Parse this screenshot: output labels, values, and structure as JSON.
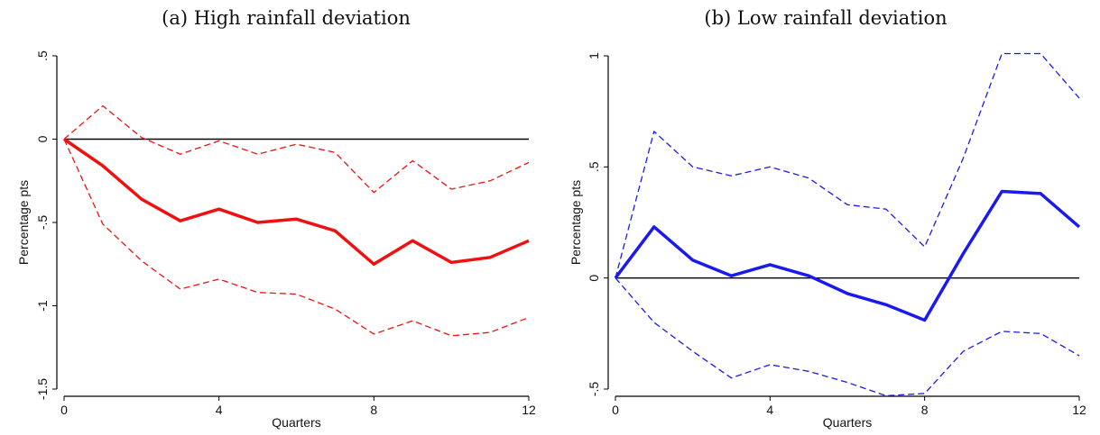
{
  "chart_data": [
    {
      "type": "line",
      "title": "(a) High rainfall deviation",
      "xlabel": "Quarters",
      "ylabel": "Percentage pts",
      "xlim": [
        0,
        12
      ],
      "ylim": [
        -1.5,
        0.5
      ],
      "xticks": [
        0,
        4,
        8,
        12
      ],
      "yticks": [
        -1.5,
        -1,
        -0.5,
        0,
        0.5
      ],
      "ytick_labels": [
        "-1.5",
        "-1",
        "-.5",
        "0",
        ".5"
      ],
      "xtick_labels": [
        "0",
        "4",
        "8",
        "12"
      ],
      "reference_line": 0,
      "colors": {
        "series": "#ee1111",
        "reference": "#000000"
      },
      "x": [
        0,
        1,
        2,
        3,
        4,
        5,
        6,
        7,
        8,
        9,
        10,
        11,
        12
      ],
      "series": [
        {
          "role": "estimate",
          "style": "solid",
          "values": [
            0,
            -0.16,
            -0.36,
            -0.49,
            -0.42,
            -0.5,
            -0.48,
            -0.55,
            -0.75,
            -0.61,
            -0.74,
            -0.71,
            -0.61
          ]
        },
        {
          "role": "upper",
          "style": "dashed",
          "values": [
            0,
            0.2,
            0.01,
            -0.09,
            -0.01,
            -0.09,
            -0.03,
            -0.08,
            -0.32,
            -0.13,
            -0.3,
            -0.25,
            -0.14
          ]
        },
        {
          "role": "lower",
          "style": "dashed",
          "values": [
            0,
            -0.51,
            -0.73,
            -0.9,
            -0.84,
            -0.92,
            -0.93,
            -1.02,
            -1.17,
            -1.09,
            -1.18,
            -1.16,
            -1.07
          ]
        }
      ]
    },
    {
      "type": "line",
      "title": "(b) Low rainfall deviation",
      "xlabel": "Quarters",
      "ylabel": "Percentage pts",
      "xlim": [
        0,
        12
      ],
      "ylim": [
        -0.5,
        1
      ],
      "xticks": [
        0,
        4,
        8,
        12
      ],
      "yticks": [
        -0.5,
        0,
        0.5,
        1
      ],
      "ytick_labels": [
        "-.5",
        "0",
        ".5",
        "1"
      ],
      "xtick_labels": [
        "0",
        "4",
        "8",
        "12"
      ],
      "reference_line": 0,
      "colors": {
        "series": "#1a1aee",
        "reference": "#000000"
      },
      "x": [
        0,
        1,
        2,
        3,
        4,
        5,
        6,
        7,
        8,
        9,
        10,
        11,
        12
      ],
      "series": [
        {
          "role": "estimate",
          "style": "solid",
          "values": [
            0,
            0.23,
            0.08,
            0.01,
            0.06,
            0.01,
            -0.07,
            -0.12,
            -0.19,
            0.11,
            0.39,
            0.38,
            0.23
          ]
        },
        {
          "role": "upper",
          "style": "dashed",
          "values": [
            0,
            0.66,
            0.5,
            0.46,
            0.5,
            0.45,
            0.33,
            0.31,
            0.14,
            0.54,
            1.01,
            1.01,
            0.81
          ]
        },
        {
          "role": "lower",
          "style": "dashed",
          "values": [
            0,
            -0.2,
            -0.33,
            -0.45,
            -0.39,
            -0.42,
            -0.47,
            -0.53,
            -0.52,
            -0.33,
            -0.24,
            -0.25,
            -0.35
          ]
        }
      ]
    }
  ]
}
